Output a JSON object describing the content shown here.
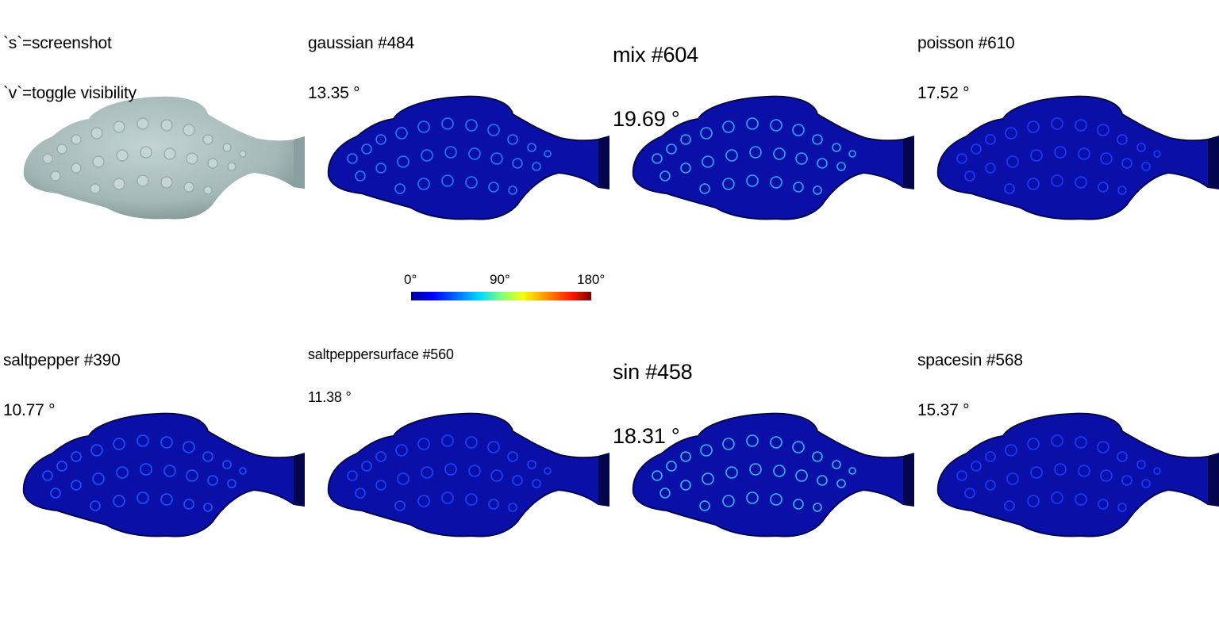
{
  "instructions": {
    "line1": "`s`=screenshot",
    "line2": "`v`=toggle visibility"
  },
  "panels": [
    {
      "id": "original",
      "title": "",
      "value": "",
      "surface": "gray"
    },
    {
      "id": "gaussian",
      "title": "gaussian #484",
      "value": "13.35 °",
      "surface": "blue"
    },
    {
      "id": "mix",
      "title": "mix #604",
      "value": "19.69 °",
      "surface": "blue"
    },
    {
      "id": "poisson",
      "title": "poisson #610",
      "value": "17.52 °",
      "surface": "blue"
    },
    {
      "id": "saltpepper",
      "title": "saltpepper #390",
      "value": "10.77 °",
      "surface": "blue"
    },
    {
      "id": "saltpeppersurface",
      "title": "saltpeppersurface #560",
      "value": "11.38 °",
      "surface": "blue"
    },
    {
      "id": "sin",
      "title": "sin #458",
      "value": "18.31 °",
      "surface": "blue"
    },
    {
      "id": "spacesin",
      "title": "spacesin #568",
      "value": "15.37 °",
      "surface": "blue"
    }
  ],
  "colorbar": {
    "min_label": "0°",
    "mid_label": "90°",
    "max_label": "180°",
    "colors": [
      "#00008f",
      "#0000ff",
      "#00d8ff",
      "#7fff80",
      "#f0ff10",
      "#ff9a00",
      "#800000"
    ]
  },
  "colors": {
    "gray_surface": "#a9bcbb",
    "blue_surface": "#0a0fa8",
    "dark_edge": "#04064d",
    "background": "#ffffff"
  }
}
